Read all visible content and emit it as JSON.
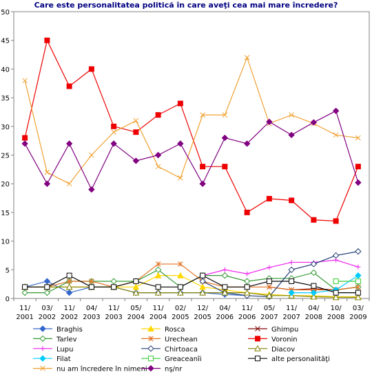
{
  "chart_data": {
    "type": "line",
    "title": "Care este personalitatea politică în care aveţi cea mai mare încredere?",
    "xlabel": "",
    "ylabel": "",
    "ylim": [
      0,
      50
    ],
    "yticks": [
      "0",
      "5",
      "10",
      "15",
      "20",
      "25",
      "30",
      "35",
      "40",
      "45",
      "50"
    ],
    "grid": false,
    "legend_position": "bottom",
    "categories": [
      [
        "11/",
        "2001"
      ],
      [
        "03/",
        "2002"
      ],
      [
        "11/",
        "2002"
      ],
      [
        "04/",
        "2003"
      ],
      [
        "11/",
        "2003"
      ],
      [
        "05/",
        "2004"
      ],
      [
        "11/",
        "2004"
      ],
      [
        "02/",
        "2005"
      ],
      [
        "12/",
        "2005"
      ],
      [
        "04/",
        "2006"
      ],
      [
        "11/",
        "2006"
      ],
      [
        "05/",
        "2007"
      ],
      [
        "11/",
        "2007"
      ],
      [
        "04/",
        "2008"
      ],
      [
        "10/",
        "2008"
      ],
      [
        "03/",
        "2009"
      ]
    ],
    "series": [
      {
        "name": "Braghis",
        "color": "#3366CC",
        "marker": "diamond-filled",
        "values": [
          2,
          3,
          1,
          2,
          2,
          1,
          1,
          1,
          1,
          0.7,
          0.5,
          null,
          null,
          null,
          null,
          null
        ]
      },
      {
        "name": "Rosca",
        "color": "#FFD700",
        "marker": "triangle-filled",
        "values": [
          2,
          2,
          2,
          2,
          2,
          2,
          4,
          4,
          2,
          1.5,
          1,
          0.7,
          0.5,
          0.5,
          0.3,
          0.3
        ]
      },
      {
        "name": "Ghimpu",
        "color": "#800000",
        "marker": "x",
        "values": [
          null,
          null,
          null,
          null,
          null,
          null,
          null,
          null,
          null,
          null,
          null,
          2,
          1.5,
          1.7,
          1.5,
          2
        ]
      },
      {
        "name": "Tarlev",
        "color": "#339933",
        "marker": "diamond-open",
        "values": [
          1,
          1,
          3,
          3,
          3,
          3,
          5,
          2,
          4,
          4,
          3,
          3.5,
          3.5,
          4.5,
          1.5,
          2
        ]
      },
      {
        "name": "Urechean",
        "color": "#E07020",
        "marker": "asterisk",
        "values": [
          2,
          2,
          3,
          3,
          2,
          3,
          6,
          6,
          3,
          2,
          2,
          2,
          1.5,
          1.5,
          1.5,
          2
        ]
      },
      {
        "name": "Voronin",
        "color": "#EE0000",
        "marker": "square-filled",
        "values": [
          28,
          45,
          37,
          40,
          30,
          29,
          32,
          34,
          23,
          23,
          15,
          17.4,
          17.1,
          13.7,
          13.5,
          23
        ]
      },
      {
        "name": "Lupu",
        "color": "#EE22EE",
        "marker": "plus",
        "values": [
          null,
          null,
          null,
          null,
          null,
          null,
          null,
          null,
          4,
          5,
          4.3,
          5.4,
          6.3,
          6.3,
          6.7,
          5.5
        ]
      },
      {
        "name": "Chirtoaca",
        "color": "#1F3B73",
        "marker": "diamond-open",
        "values": [
          null,
          null,
          null,
          null,
          null,
          null,
          null,
          null,
          3,
          1,
          0.5,
          0.3,
          5,
          6,
          7.5,
          8.2
        ]
      },
      {
        "name": "Diacov",
        "color": "#808000",
        "marker": "triangle-open",
        "values": [
          2,
          2,
          2,
          2,
          2,
          1,
          1,
          1,
          1,
          1,
          1,
          0.5,
          0.5,
          0.3,
          0.2,
          0.2
        ]
      },
      {
        "name": "Filat",
        "color": "#00CCFF",
        "marker": "diamond-filled",
        "values": [
          null,
          null,
          null,
          null,
          null,
          null,
          null,
          null,
          null,
          null,
          null,
          null,
          1,
          1,
          1.5,
          4
        ]
      },
      {
        "name": "Greaceanîi",
        "color": "#33CC33",
        "marker": "square-open",
        "values": [
          null,
          null,
          null,
          null,
          null,
          null,
          null,
          null,
          null,
          null,
          null,
          null,
          null,
          null,
          3,
          3
        ]
      },
      {
        "name": "alte personalităţi",
        "color": "#000000",
        "marker": "square-open",
        "values": [
          2,
          2,
          4,
          2,
          2,
          3,
          2,
          2,
          4,
          2,
          2,
          3,
          3,
          2.2,
          1,
          1
        ]
      },
      {
        "name": "nu am încredere în nimeni",
        "color": "#F0A030",
        "marker": "x",
        "values": [
          38,
          22,
          20,
          25,
          29,
          31,
          23,
          21,
          32,
          32,
          42,
          30.5,
          32,
          30.5,
          28.5,
          28
        ]
      },
      {
        "name": "nş/nr",
        "color": "#800080",
        "marker": "diamond-filled",
        "values": [
          27,
          20,
          27,
          19,
          27,
          24,
          25,
          27,
          20,
          28,
          27,
          30.8,
          28.5,
          30.7,
          32.7,
          20.2
        ]
      }
    ]
  }
}
